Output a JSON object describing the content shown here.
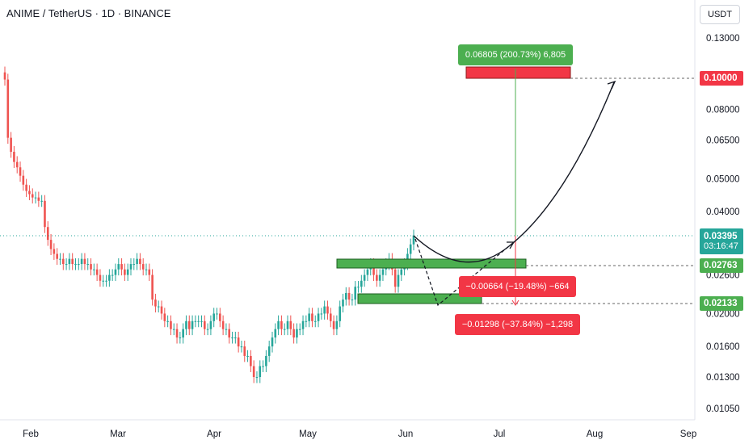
{
  "header": {
    "symbol": "ANIME / TetherUS · 1D · BINANCE",
    "currency": "USDT"
  },
  "chart_data": {
    "type": "candlestick",
    "y_scale": "log",
    "y_ticks": [
      "0.13000",
      "0.10000",
      "0.08000",
      "0.06500",
      "0.05000",
      "0.04000",
      "0.02600",
      "0.02000",
      "0.01600",
      "0.01300",
      "0.01050"
    ],
    "x_ticks": [
      "Feb",
      "Mar",
      "Apr",
      "May",
      "Jun",
      "Jul",
      "Aug",
      "Sep"
    ],
    "price_tags": {
      "target": "0.10000",
      "current": "0.03395",
      "countdown": "03:16:47",
      "support_high": "0.02763",
      "support_low": "0.02133"
    },
    "annotations": {
      "gain_label": "0.06805 (200.73%) 6,805",
      "loss_small_label": "−0.00664 (−19.48%) −664",
      "loss_large_label": "−0.01298 (−37.84%) −1,298"
    },
    "candle_closes": [
      0.098,
      0.066,
      0.06,
      0.056,
      0.054,
      0.051,
      0.048,
      0.046,
      0.045,
      0.044,
      0.044,
      0.043,
      0.043,
      0.036,
      0.033,
      0.031,
      0.03,
      0.029,
      0.029,
      0.028,
      0.028,
      0.029,
      0.028,
      0.028,
      0.028,
      0.029,
      0.028,
      0.028,
      0.027,
      0.027,
      0.026,
      0.025,
      0.025,
      0.025,
      0.026,
      0.026,
      0.027,
      0.028,
      0.027,
      0.026,
      0.027,
      0.028,
      0.028,
      0.029,
      0.028,
      0.027,
      0.027,
      0.026,
      0.022,
      0.021,
      0.021,
      0.02,
      0.019,
      0.019,
      0.018,
      0.018,
      0.017,
      0.017,
      0.018,
      0.019,
      0.018,
      0.019,
      0.019,
      0.019,
      0.019,
      0.018,
      0.018,
      0.019,
      0.02,
      0.02,
      0.019,
      0.018,
      0.018,
      0.017,
      0.017,
      0.017,
      0.016,
      0.016,
      0.015,
      0.015,
      0.014,
      0.013,
      0.013,
      0.014,
      0.014,
      0.015,
      0.016,
      0.017,
      0.018,
      0.019,
      0.018,
      0.018,
      0.019,
      0.018,
      0.017,
      0.018,
      0.018,
      0.019,
      0.019,
      0.02,
      0.019,
      0.019,
      0.02,
      0.02,
      0.021,
      0.02,
      0.019,
      0.018,
      0.019,
      0.021,
      0.022,
      0.023,
      0.022,
      0.022,
      0.024,
      0.024,
      0.025,
      0.026,
      0.027,
      0.028,
      0.026,
      0.025,
      0.026,
      0.027,
      0.028,
      0.029,
      0.027,
      0.024,
      0.026,
      0.027,
      0.028,
      0.03,
      0.032,
      0.034
    ]
  }
}
